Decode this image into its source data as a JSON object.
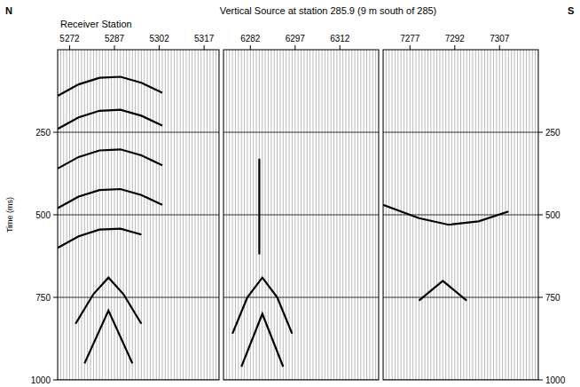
{
  "chart_data": {
    "type": "wiggle",
    "title": "Vertical Source at station 285.9 (9 m south of 285)",
    "left_label": "N",
    "right_label": "S",
    "x_label": "Receiver Station",
    "y_label": "Time (ms)",
    "ylim": [
      0,
      1000
    ],
    "yticks": [
      250,
      500,
      750,
      1000
    ],
    "grid": true,
    "color": "#000000",
    "panels": [
      {
        "xlim": [
          5268,
          5322
        ],
        "xticks": [
          5272,
          5287,
          5302,
          5317
        ],
        "series": [
          {
            "x": [
              5268,
              5275,
              5282,
              5289,
              5296,
              5303
            ],
            "values": [
              140,
              105,
              85,
              82,
              100,
              130
            ]
          },
          {
            "x": [
              5268,
              5275,
              5282,
              5289,
              5296,
              5303
            ],
            "values": [
              240,
              205,
              185,
              182,
              200,
              230
            ]
          },
          {
            "x": [
              5268,
              5275,
              5282,
              5289,
              5296,
              5303
            ],
            "values": [
              360,
              325,
              305,
              302,
              320,
              350
            ]
          },
          {
            "x": [
              5268,
              5275,
              5282,
              5289,
              5296,
              5303
            ],
            "values": [
              480,
              445,
              425,
              422,
              440,
              470
            ]
          },
          {
            "x": [
              5268,
              5275,
              5282,
              5289,
              5296
            ],
            "values": [
              600,
              565,
              545,
              542,
              560
            ]
          },
          {
            "x": [
              5274,
              5280,
              5285,
              5290,
              5296
            ],
            "values": [
              830,
              740,
              690,
              740,
              830
            ]
          },
          {
            "x": [
              5277,
              5285,
              5293
            ],
            "values": [
              950,
              790,
              950
            ]
          }
        ]
      },
      {
        "xlim": [
          6273,
          6325
        ],
        "xticks": [
          6282,
          6297,
          6312
        ],
        "series": [
          {
            "x": [
              6285,
              6285
            ],
            "values": [
              330,
              620
            ]
          },
          {
            "x": [
              6276,
              6281,
              6286,
              6291,
              6296
            ],
            "values": [
              860,
              750,
              690,
              750,
              860
            ]
          },
          {
            "x": [
              6279,
              6286,
              6293
            ],
            "values": [
              960,
              800,
              960
            ]
          }
        ]
      },
      {
        "xlim": [
          7268,
          7320
        ],
        "xticks": [
          7277,
          7292,
          7307
        ],
        "series": [
          {
            "x": [
              7268,
              7280,
              7290,
              7300,
              7310
            ],
            "values": [
              470,
              510,
              530,
              520,
              490
            ]
          },
          {
            "x": [
              7280,
              7288,
              7296
            ],
            "values": [
              760,
              700,
              760
            ]
          }
        ]
      }
    ]
  }
}
